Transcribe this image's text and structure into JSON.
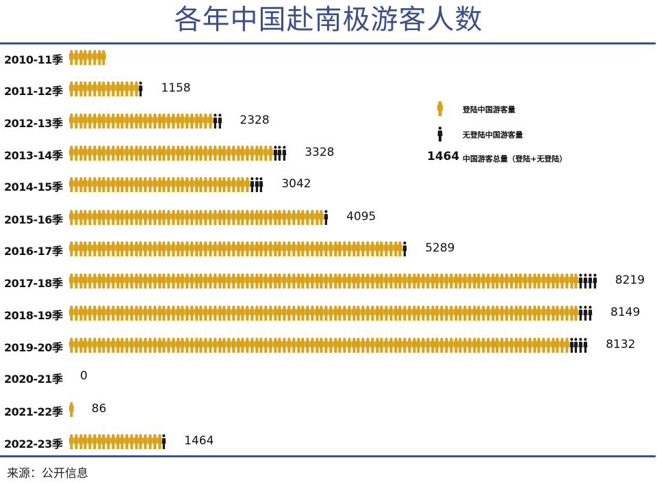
{
  "title": "各年中国赴南极游客人数",
  "source": "来源：公开信息",
  "colors": {
    "landing": "#d9a21b",
    "non_landing": "#1a1a1a",
    "title": "#3d4f8a",
    "rule": "#3f4f8c"
  },
  "legend": {
    "landing_label": "登陆中国游客量",
    "non_landing_label": "无登陆中国游客量",
    "total_example_value": "1464",
    "total_label": "中国游客总量（登陆+无登陆）"
  },
  "chart_data": {
    "type": "bar",
    "subtype": "pictogram",
    "title": "各年中国赴南极游客人数",
    "xlabel": "",
    "ylabel": "",
    "categories": [
      "2010-11季",
      "2011-12季",
      "2012-13季",
      "2013-14季",
      "2014-15季",
      "2015-16季",
      "2016-17季",
      "2017-18季",
      "2018-19季",
      "2019-20季",
      "2020-21季",
      "2021-22季",
      "2022-23季"
    ],
    "series": [
      {
        "name": "中国游客总量（登陆+无登陆）",
        "values": [
          null,
          1158,
          2328,
          3328,
          3042,
          4095,
          5289,
          8219,
          8149,
          8132,
          0,
          86,
          1464
        ]
      },
      {
        "name": "登陆中国游客量 (figure count)",
        "values": [
          8,
          15,
          31,
          44,
          39,
          55,
          72,
          110,
          110,
          108,
          0,
          1,
          20
        ]
      },
      {
        "name": "无登陆中国游客量 (figure count)",
        "values": [
          0,
          1,
          2,
          3,
          3,
          1,
          1,
          4,
          3,
          4,
          0,
          0,
          1
        ]
      }
    ],
    "legend_position": "right-inset",
    "grid": false
  },
  "rows": [
    {
      "label": "2010-11季",
      "total": "",
      "gold": 8,
      "black": 0,
      "y": 69
    },
    {
      "label": "2011-12季",
      "total": "1158",
      "gold": 15,
      "black": 1,
      "y": 115
    },
    {
      "label": "2012-13季",
      "total": "2328",
      "gold": 31,
      "black": 2,
      "y": 162
    },
    {
      "label": "2013-14季",
      "total": "3328",
      "gold": 44,
      "black": 3,
      "y": 209
    },
    {
      "label": "2014-15季",
      "total": "3042",
      "gold": 39,
      "black": 3,
      "y": 255
    },
    {
      "label": "2015-16季",
      "total": "4095",
      "gold": 55,
      "black": 1,
      "y": 303
    },
    {
      "label": "2016-17季",
      "total": "5289",
      "gold": 72,
      "black": 1,
      "y": 349
    },
    {
      "label": "2017-18季",
      "total": "8219",
      "gold": 110,
      "black": 4,
      "y": 396
    },
    {
      "label": "2018-19季",
      "total": "8149",
      "gold": 110,
      "black": 3,
      "y": 443
    },
    {
      "label": "2019-20季",
      "total": "8132",
      "gold": 108,
      "black": 4,
      "y": 490
    },
    {
      "label": "2020-21季",
      "total": "0",
      "gold": 0,
      "black": 0,
      "y": 536
    },
    {
      "label": "2021-22季",
      "total": "86",
      "gold": 1,
      "black": 0,
      "y": 584
    },
    {
      "label": "2022-23季",
      "total": "1464",
      "gold": 20,
      "black": 1,
      "y": 631
    }
  ]
}
